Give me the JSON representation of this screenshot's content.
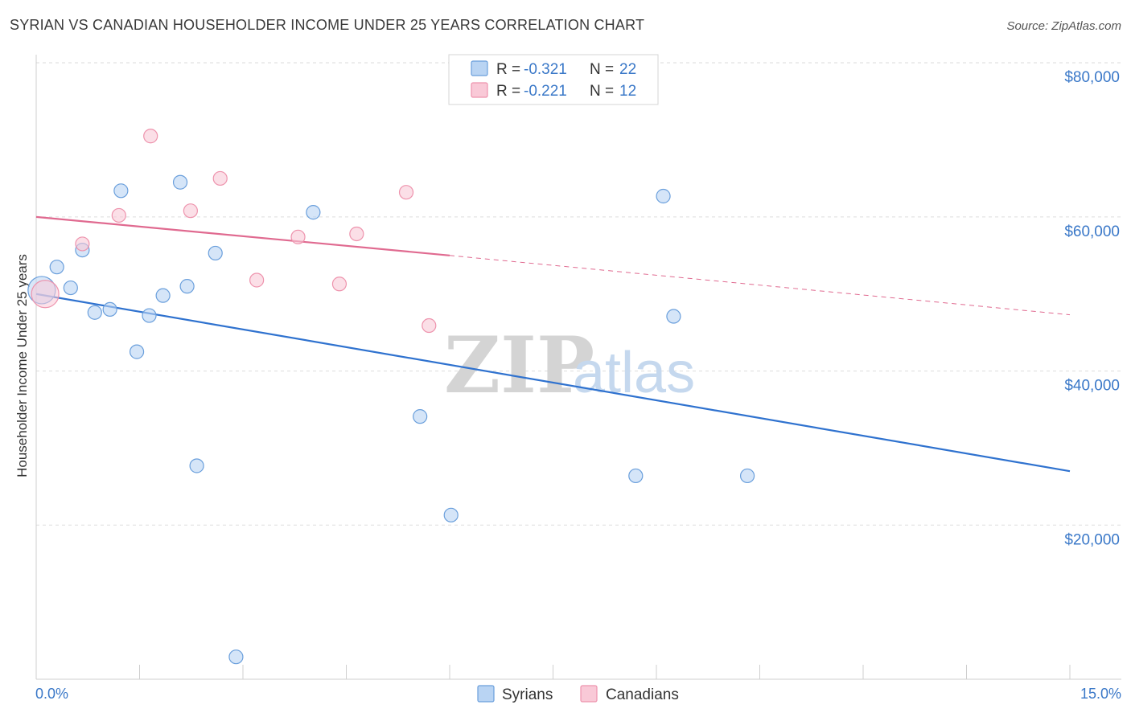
{
  "header": {
    "title": "SYRIAN VS CANADIAN HOUSEHOLDER INCOME UNDER 25 YEARS CORRELATION CHART",
    "source": "Source: ZipAtlas.com"
  },
  "watermark": {
    "zip": "ZIP",
    "atlas": "atlas"
  },
  "colors": {
    "syrians_fill": "#b9d4f3",
    "syrians_stroke": "#6a9fdc",
    "syrians_line": "#2f72cf",
    "canadians_fill": "#f9c9d7",
    "canadians_stroke": "#ee93ad",
    "canadians_line": "#e06a90",
    "grid": "#dddddd",
    "axis_text": "#3a78c8"
  },
  "legend": {
    "rows": [
      {
        "r_label": "R =",
        "r_value": "-0.321",
        "n_label": "N =",
        "n_value": "22"
      },
      {
        "r_label": "R =",
        "r_value": "-0.221",
        "n_label": "N =",
        "n_value": "12"
      }
    ]
  },
  "chart_data": {
    "type": "scatter",
    "title": "SYRIAN VS CANADIAN HOUSEHOLDER INCOME UNDER 25 YEARS CORRELATION CHART",
    "xlabel": "",
    "ylabel": "Householder Income Under 25 years",
    "xlim": [
      0,
      15
    ],
    "ylim": [
      0,
      82000
    ],
    "x_tick_labels": [
      "0.0%",
      "15.0%"
    ],
    "y_ticks": [
      20000,
      40000,
      60000,
      80000
    ],
    "y_tick_labels": [
      "$20,000",
      "$40,000",
      "$60,000",
      "$80,000"
    ],
    "grid": true,
    "legend_position": "top-center",
    "series": [
      {
        "name": "Syrians",
        "points": [
          {
            "x": 0.08,
            "y": 50500,
            "large": true
          },
          {
            "x": 0.3,
            "y": 53500
          },
          {
            "x": 0.5,
            "y": 50800
          },
          {
            "x": 0.67,
            "y": 55700
          },
          {
            "x": 0.85,
            "y": 47600
          },
          {
            "x": 1.07,
            "y": 48000
          },
          {
            "x": 1.23,
            "y": 63400
          },
          {
            "x": 1.46,
            "y": 42500
          },
          {
            "x": 1.64,
            "y": 47200
          },
          {
            "x": 1.84,
            "y": 49800
          },
          {
            "x": 2.09,
            "y": 64500
          },
          {
            "x": 2.19,
            "y": 51000
          },
          {
            "x": 2.33,
            "y": 27700
          },
          {
            "x": 2.6,
            "y": 55300
          },
          {
            "x": 2.9,
            "y": 2900
          },
          {
            "x": 4.02,
            "y": 60600
          },
          {
            "x": 5.57,
            "y": 34100
          },
          {
            "x": 6.02,
            "y": 21300
          },
          {
            "x": 8.7,
            "y": 26400
          },
          {
            "x": 9.1,
            "y": 62700
          },
          {
            "x": 9.25,
            "y": 47100
          },
          {
            "x": 10.32,
            "y": 26400
          }
        ],
        "trend": {
          "x": [
            0,
            15
          ],
          "y": [
            50000,
            27000
          ],
          "style": "solid"
        }
      },
      {
        "name": "Canadians",
        "points": [
          {
            "x": 0.13,
            "y": 50000,
            "large": true
          },
          {
            "x": 0.67,
            "y": 56500
          },
          {
            "x": 1.2,
            "y": 60200
          },
          {
            "x": 1.66,
            "y": 70500
          },
          {
            "x": 2.24,
            "y": 60800
          },
          {
            "x": 2.67,
            "y": 65000
          },
          {
            "x": 3.2,
            "y": 51800
          },
          {
            "x": 3.8,
            "y": 57400
          },
          {
            "x": 4.4,
            "y": 51300
          },
          {
            "x": 4.65,
            "y": 57800
          },
          {
            "x": 5.37,
            "y": 63200
          },
          {
            "x": 5.7,
            "y": 45900
          }
        ],
        "trend": {
          "x": [
            0,
            6
          ],
          "y": [
            60000,
            55000
          ],
          "style": "solid",
          "extension": {
            "x": [
              6,
              15
            ],
            "y": [
              55000,
              47300
            ],
            "style": "dashed"
          }
        }
      }
    ]
  },
  "bottom_legend": {
    "items": [
      {
        "label": "Syrians"
      },
      {
        "label": "Canadians"
      }
    ]
  }
}
